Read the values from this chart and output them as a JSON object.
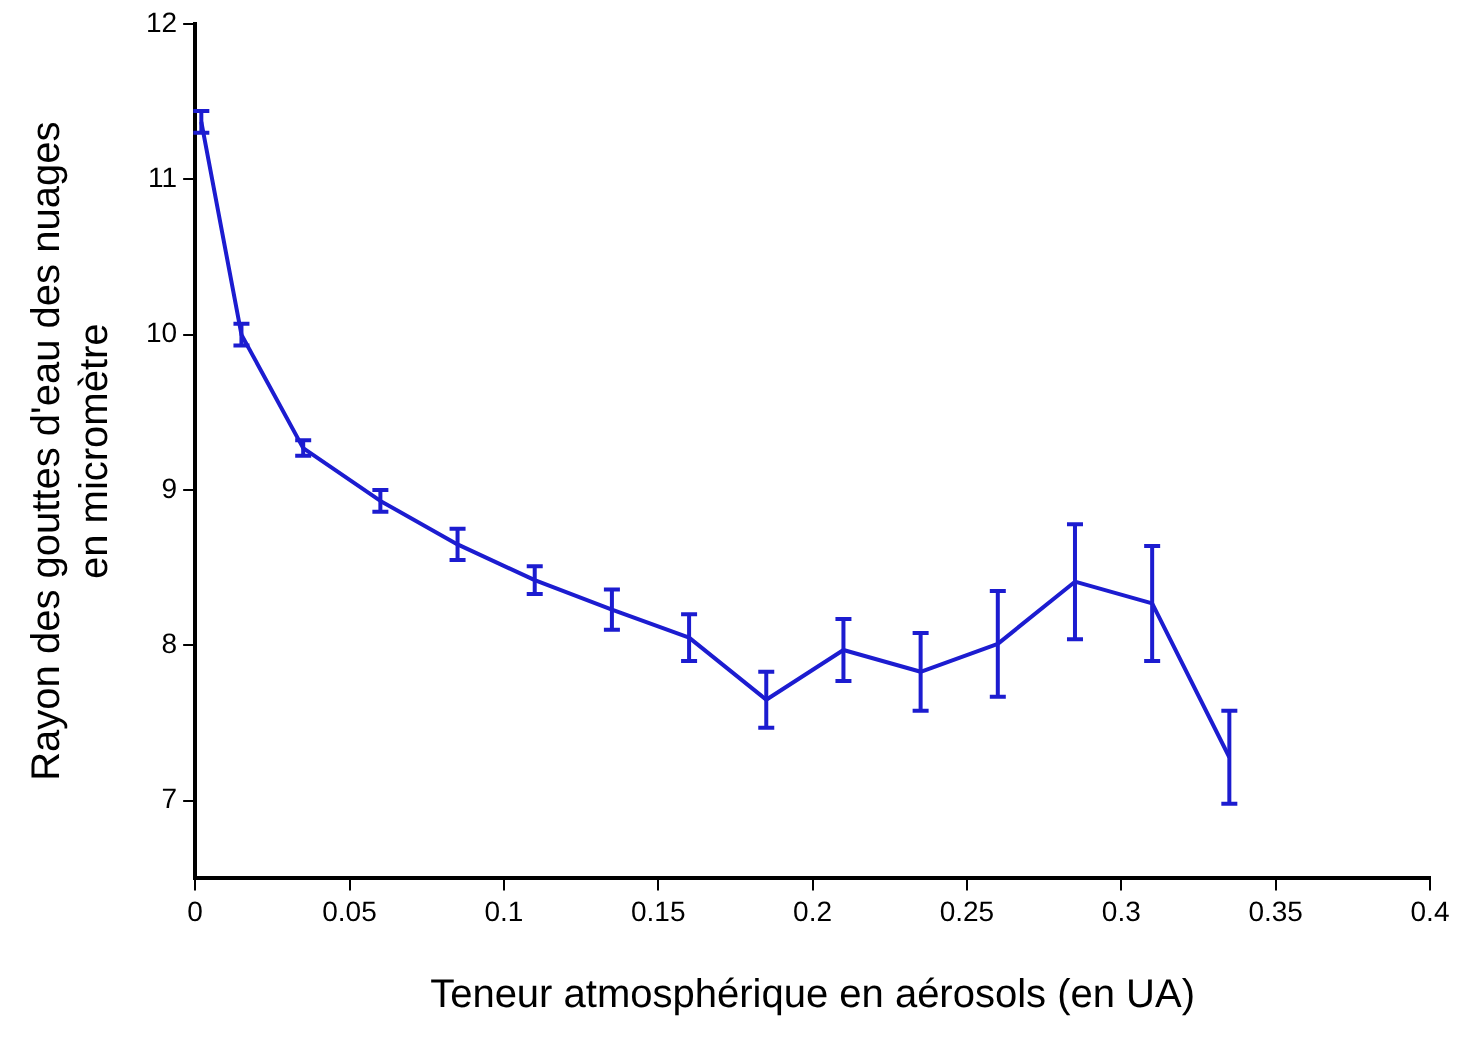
{
  "chart_data": {
    "type": "line",
    "xlabel": "Teneur atmosphérique en aérosols (en UA)",
    "ylabel": "Rayon des gouttes d'eau des nuages\nen micromètre",
    "x": [
      0.002,
      0.015,
      0.035,
      0.06,
      0.085,
      0.11,
      0.135,
      0.16,
      0.185,
      0.21,
      0.235,
      0.26,
      0.285,
      0.31,
      0.335
    ],
    "series": [
      {
        "color": "#1c1cd0",
        "values": [
          11.37,
          10.0,
          9.27,
          8.93,
          8.65,
          8.42,
          8.23,
          8.05,
          7.65,
          7.97,
          7.83,
          8.01,
          8.41,
          8.27,
          7.28
        ],
        "errors": [
          0.07,
          0.07,
          0.05,
          0.07,
          0.1,
          0.09,
          0.13,
          0.15,
          0.18,
          0.2,
          0.25,
          0.34,
          0.37,
          0.37,
          0.3
        ]
      }
    ],
    "xlim": [
      0,
      0.4
    ],
    "ylim": [
      6.5,
      12
    ],
    "xticks": [
      0,
      0.05,
      0.1,
      0.15,
      0.2,
      0.25,
      0.3,
      0.35,
      0.4
    ],
    "yticks": [
      7,
      8,
      9,
      10,
      11,
      12
    ],
    "grid": false,
    "legend": false,
    "marker": "none",
    "line_style": "solid"
  }
}
